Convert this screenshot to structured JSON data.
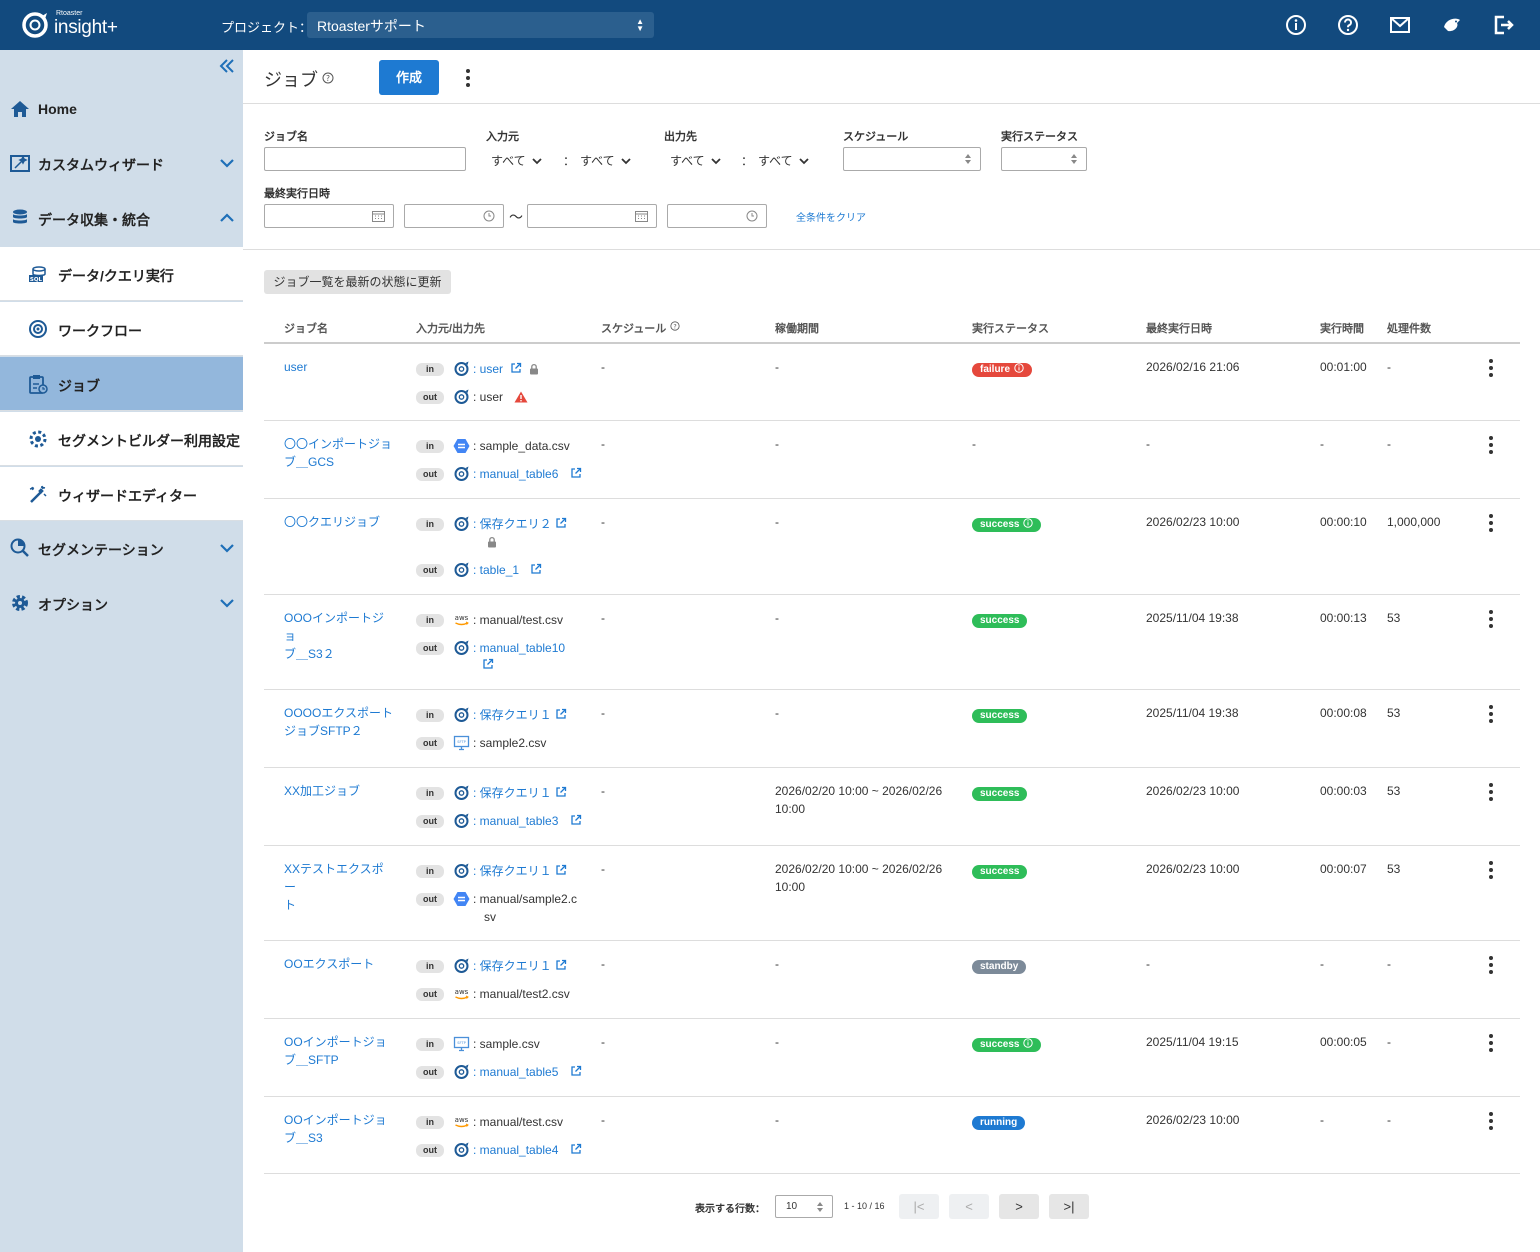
{
  "app": {
    "logo_small": "Rtoaster",
    "logo_main": "insight+"
  },
  "topbar": {
    "project_label": "プロジェクト：",
    "project_value": "Rtoasterサポート",
    "icons": [
      "info-icon",
      "help-icon",
      "mail-icon",
      "bird-icon",
      "logout-icon"
    ]
  },
  "sidebar": {
    "items": [
      {
        "label": "Home",
        "icon": "home-icon"
      },
      {
        "label": "カスタムウィザード",
        "icon": "wizard-icon"
      },
      {
        "label": "データ収集・統合",
        "icon": "database-icon"
      },
      {
        "label": "データ/クエリ実行",
        "icon": "sql-icon"
      },
      {
        "label": "ワークフロー",
        "icon": "workflow-icon"
      },
      {
        "label": "ジョブ",
        "icon": "job-icon",
        "active": true
      },
      {
        "label": "セグメントビルダー利用設定",
        "icon": "segment-settings-icon"
      },
      {
        "label": "ウィザードエディター",
        "icon": "magic-wand-icon"
      },
      {
        "label": "セグメンテーション",
        "icon": "segmentation-icon"
      },
      {
        "label": "オプション",
        "icon": "gear-icon"
      }
    ]
  },
  "page": {
    "title": "ジョブ",
    "create_label": "作成"
  },
  "filters": {
    "job_name_label": "ジョブ名",
    "input_label": "入力元",
    "input_type": "すべて",
    "input_value": "すべて",
    "output_label": "出力先",
    "output_type": "すべて",
    "output_value": "すべて",
    "separator": "：",
    "schedule_label": "スケジュール",
    "status_label": "実行ステータス",
    "last_run_label": "最終実行日時",
    "range_sep": "〜",
    "clear_label": "全条件をクリア"
  },
  "refresh_label": "ジョブ一覧を最新の状態に更新",
  "table": {
    "headers": [
      "ジョブ名",
      "入力元/出力先",
      "スケジュール",
      "稼働期間",
      "実行ステータス",
      "最終実行日時",
      "実行時間",
      "処理件数"
    ],
    "rows": [
      {
        "name": [
          "user"
        ],
        "in": {
          "text": "user",
          "link": true,
          "icon": "rtoaster-icon",
          "lock": true
        },
        "out": {
          "text": "user",
          "link": false,
          "icon": "rtoaster-icon",
          "warn": true
        },
        "schedule": "-",
        "period": [
          "-"
        ],
        "status": "failure",
        "status_info": true,
        "last_run": "2026/02/16 21:06",
        "duration": "00:01:00",
        "count": "-"
      },
      {
        "name": [
          "〇〇インポートジョ",
          "ブ＿GCS"
        ],
        "in": {
          "text": "sample_data.csv",
          "link": false,
          "icon": "gcs-icon"
        },
        "out": {
          "text": "manual_table6",
          "link": true,
          "icon": "rtoaster-icon"
        },
        "schedule": "-",
        "period": [
          "-"
        ],
        "status": "-",
        "last_run": "-",
        "duration": "-",
        "count": "-"
      },
      {
        "name": [
          "〇〇クエリジョブ"
        ],
        "in": {
          "text": "保存クエリ２",
          "link": true,
          "icon": "rtoaster-icon",
          "lock_below": true
        },
        "out": {
          "text": "table_1",
          "link": true,
          "icon": "rtoaster-icon"
        },
        "schedule": "-",
        "period": [
          "-"
        ],
        "status": "success",
        "status_info": true,
        "last_run": "2026/02/23 10:00",
        "duration": "00:00:10",
        "count": "1,000,000"
      },
      {
        "name": [
          "OOOインポートジョ",
          "ブ＿S3２"
        ],
        "in": {
          "text": "manual/test.csv",
          "link": false,
          "icon": "aws-icon"
        },
        "out": {
          "text": "manual_table10",
          "link": true,
          "icon": "rtoaster-icon",
          "wrap_ext": true
        },
        "schedule": "-",
        "period": [
          "-"
        ],
        "status": "success",
        "last_run": "2025/11/04 19:38",
        "duration": "00:00:13",
        "count": "53"
      },
      {
        "name": [
          "OOOOエクスポート",
          "ジョブSFTP２"
        ],
        "in": {
          "text": "保存クエリ１",
          "link": true,
          "icon": "rtoaster-icon"
        },
        "out": {
          "text": "sample2.csv",
          "link": false,
          "icon": "sftp-icon"
        },
        "schedule": "-",
        "period": [
          "-"
        ],
        "status": "success",
        "last_run": "2025/11/04 19:38",
        "duration": "00:00:08",
        "count": "53"
      },
      {
        "name": [
          "XX加工ジョブ"
        ],
        "in": {
          "text": "保存クエリ１",
          "link": true,
          "icon": "rtoaster-icon"
        },
        "out": {
          "text": "manual_table3",
          "link": true,
          "icon": "rtoaster-icon"
        },
        "schedule": "-",
        "period": [
          "2026/02/20 10:00 ~ 2026/02/26",
          "10:00"
        ],
        "status": "success",
        "last_run": "2026/02/23 10:00",
        "duration": "00:00:03",
        "count": "53"
      },
      {
        "name": [
          "XXテストエクスポー",
          "ト"
        ],
        "in": {
          "text": "保存クエリ１",
          "link": true,
          "icon": "rtoaster-icon"
        },
        "out": {
          "text": "manual/sample2.c",
          "text2": "sv",
          "link": false,
          "icon": "gcs-icon"
        },
        "schedule": "-",
        "period": [
          "2026/02/20 10:00 ~ 2026/02/26",
          "10:00"
        ],
        "status": "success",
        "last_run": "2026/02/23 10:00",
        "duration": "00:00:07",
        "count": "53"
      },
      {
        "name": [
          "OOエクスポート"
        ],
        "in": {
          "text": "保存クエリ１",
          "link": true,
          "icon": "rtoaster-icon"
        },
        "out": {
          "text": "manual/test2.csv",
          "link": false,
          "icon": "aws-icon"
        },
        "schedule": "-",
        "period": [
          "-"
        ],
        "status": "standby",
        "last_run": "-",
        "duration": "-",
        "count": "-"
      },
      {
        "name": [
          "OOインポートジョ",
          "ブ＿SFTP"
        ],
        "in": {
          "text": "sample.csv",
          "link": false,
          "icon": "sftp-icon"
        },
        "out": {
          "text": "manual_table5",
          "link": true,
          "icon": "rtoaster-icon"
        },
        "schedule": "-",
        "period": [
          "-"
        ],
        "status": "success",
        "status_info": true,
        "last_run": "2025/11/04 19:15",
        "duration": "00:00:05",
        "count": "-"
      },
      {
        "name": [
          "OOインポートジョ",
          "ブ＿S3"
        ],
        "in": {
          "text": "manual/test.csv",
          "link": false,
          "icon": "aws-icon"
        },
        "out": {
          "text": "manual_table4",
          "link": true,
          "icon": "rtoaster-icon"
        },
        "schedule": "-",
        "period": [
          "-"
        ],
        "status": "running",
        "last_run": "2026/02/23 10:00",
        "duration": "-",
        "count": "-"
      }
    ]
  },
  "io_labels": {
    "in": "in",
    "out": "out",
    "colon": ": "
  },
  "status_colors": {
    "failure": "#e5483c",
    "success": "#2ebd59",
    "standby": "#7c8a99",
    "running": "#1e7ad2"
  },
  "pagination": {
    "rows_label": "表示する行数：",
    "rows_value": "10",
    "info": "1 - 10 / 16",
    "first": "|<",
    "prev": "<",
    "next": ">",
    "last": ">|"
  }
}
